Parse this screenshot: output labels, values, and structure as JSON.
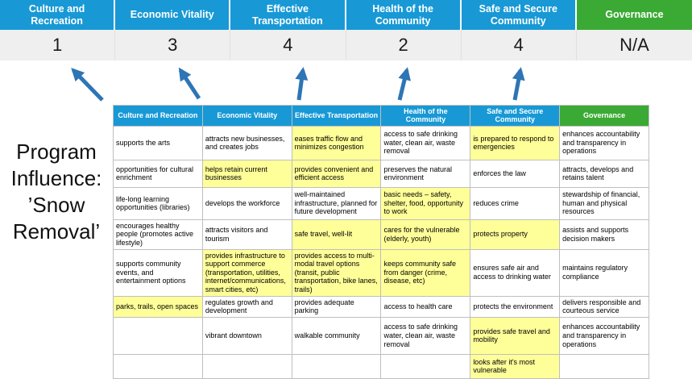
{
  "title": "Program Influence: ’Snow Removal’",
  "colors": {
    "blue": "#1899D6",
    "green": "#3AAA35",
    "highlight": "#FFFF99",
    "arrow": "#2E75B6",
    "score_band": "#EFEFEF"
  },
  "scoreboard": {
    "columns": [
      {
        "label": "Culture and Recreation",
        "score": "1",
        "theme": "blue"
      },
      {
        "label": "Economic Vitality",
        "score": "3",
        "theme": "blue"
      },
      {
        "label": "Effective Transportation",
        "score": "4",
        "theme": "blue"
      },
      {
        "label": "Health of the Community",
        "score": "2",
        "theme": "blue"
      },
      {
        "label": "Safe and Secure Community",
        "score": "4",
        "theme": "blue"
      },
      {
        "label": "Governance",
        "score": "N/A",
        "theme": "green"
      }
    ]
  },
  "matrix": {
    "headers": [
      {
        "label": "Culture and Recreation",
        "theme": "blue"
      },
      {
        "label": "Economic Vitality",
        "theme": "blue"
      },
      {
        "label": "Effective Transportation",
        "theme": "blue"
      },
      {
        "label": "Health of the Community",
        "theme": "blue"
      },
      {
        "label": "Safe and Secure Community",
        "theme": "green2",
        "theme_fix": "blue"
      },
      {
        "label": "Governance",
        "theme": "green"
      }
    ],
    "rows": [
      [
        {
          "text": "supports the arts",
          "highlight": false
        },
        {
          "text": "attracts new businesses, and creates jobs",
          "highlight": false
        },
        {
          "text": "eases traffic flow and minimizes congestion",
          "highlight": true
        },
        {
          "text": "access to safe drinking water, clean air, waste removal",
          "highlight": false
        },
        {
          "text": "is prepared to respond to emergencies",
          "highlight": true
        },
        {
          "text": "enhances accountability and transparency in operations",
          "highlight": false
        }
      ],
      [
        {
          "text": "opportunities for cultural enrichment",
          "highlight": false
        },
        {
          "text": "helps retain current businesses",
          "highlight": true
        },
        {
          "text": "provides convenient and efficient access",
          "highlight": true
        },
        {
          "text": "preserves the natural environment",
          "highlight": false
        },
        {
          "text": "enforces the law",
          "highlight": false
        },
        {
          "text": "attracts, develops and retains talent",
          "highlight": false
        }
      ],
      [
        {
          "text": "life-long learning opportunities (libraries)",
          "highlight": false
        },
        {
          "text": "develops the workforce",
          "highlight": false
        },
        {
          "text": "well-maintained infrastructure, planned for future development",
          "highlight": false
        },
        {
          "text": "basic needs – safety, shelter, food, opportunity to work",
          "highlight": true
        },
        {
          "text": "reduces crime",
          "highlight": false
        },
        {
          "text": "stewardship of financial, human and physical resources",
          "highlight": false
        }
      ],
      [
        {
          "text": "encourages healthy people (promotes active lifestyle)",
          "highlight": false
        },
        {
          "text": "attracts visitors and tourism",
          "highlight": false
        },
        {
          "text": "safe travel, well-lit",
          "highlight": true
        },
        {
          "text": "cares for the vulnerable (elderly, youth)",
          "highlight": true
        },
        {
          "text": "protects property",
          "highlight": true
        },
        {
          "text": "assists and supports decision makers",
          "highlight": false
        }
      ],
      [
        {
          "text": "supports community events, and entertainment options",
          "highlight": false
        },
        {
          "text": "provides infrastructure to support commerce (transportation, utilities, internet/communications, smart cities, etc)",
          "highlight": true
        },
        {
          "text": "provides access to multi-modal travel options (transit, public transportation, bike lanes, trails)",
          "highlight": true
        },
        {
          "text": "keeps community safe from danger (crime, disease, etc)",
          "highlight": true
        },
        {
          "text": "ensures safe air and access to drinking water",
          "highlight": false
        },
        {
          "text": "maintains regulatory compliance",
          "highlight": false
        }
      ],
      [
        {
          "text": "parks, trails, open spaces",
          "highlight": true
        },
        {
          "text": "regulates growth and development",
          "highlight": false
        },
        {
          "text": "provides adequate parking",
          "highlight": false
        },
        {
          "text": "access to health care",
          "highlight": false
        },
        {
          "text": "protects the environment",
          "highlight": false
        },
        {
          "text": "delivers responsible and courteous service",
          "highlight": false
        }
      ],
      [
        {
          "text": "",
          "highlight": false
        },
        {
          "text": "vibrant downtown",
          "highlight": false
        },
        {
          "text": "walkable community",
          "highlight": false
        },
        {
          "text": "access to safe drinking water, clean air, waste removal",
          "highlight": false
        },
        {
          "text": "provides safe travel and mobility",
          "highlight": true
        },
        {
          "text": "enhances accountability and transparency in operations",
          "highlight": false
        }
      ],
      [
        {
          "text": "",
          "highlight": false
        },
        {
          "text": "",
          "highlight": false
        },
        {
          "text": "",
          "highlight": false
        },
        {
          "text": "",
          "highlight": false
        },
        {
          "text": "looks after it's most vulnerable",
          "highlight": true
        },
        {
          "text": "",
          "highlight": false
        }
      ]
    ]
  }
}
